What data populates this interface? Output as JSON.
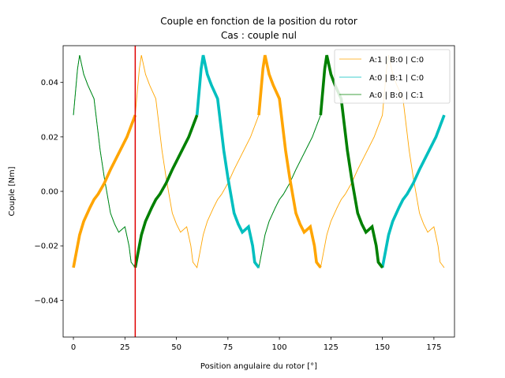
{
  "chart_data": {
    "type": "line",
    "title": "Couple en fonction de la position du rotor",
    "subtitle": "Cas : couple nul",
    "xlabel": "Position angulaire du rotor [°]",
    "ylabel": "Couple [Nm]",
    "xlim": [
      -5,
      185
    ],
    "ylim": [
      -0.0535,
      0.0535
    ],
    "xticks": [
      0,
      25,
      50,
      75,
      100,
      125,
      150,
      175
    ],
    "yticks": [
      -0.04,
      -0.02,
      0.0,
      0.02,
      0.04
    ],
    "xtick_labels": [
      "0",
      "25",
      "50",
      "75",
      "100",
      "125",
      "150",
      "175"
    ],
    "ytick_labels": [
      "−0.04",
      "−0.02",
      "0.00",
      "0.02",
      "0.04"
    ],
    "grid": false,
    "legend_position": "top-right",
    "period_deg": 60,
    "marker_line": {
      "x": 30,
      "color": "#e00000"
    },
    "base_waveform_A": {
      "x": [
        0,
        3,
        5,
        8,
        10,
        12,
        15,
        18,
        20,
        22,
        24,
        26,
        28,
        30,
        32,
        33,
        35,
        37,
        40,
        43,
        45,
        48,
        50,
        52,
        55,
        57,
        58,
        60
      ],
      "y": [
        -0.028,
        -0.016,
        -0.011,
        -0.006,
        -0.003,
        -0.001,
        0.003,
        0.008,
        0.011,
        0.014,
        0.017,
        0.02,
        0.024,
        0.028,
        0.045,
        0.05,
        0.043,
        0.039,
        0.034,
        0.015,
        0.005,
        -0.008,
        -0.012,
        -0.015,
        -0.013,
        -0.02,
        -0.026,
        -0.028
      ]
    },
    "series": [
      {
        "name": "A:1 | B:0 | C:0",
        "color": "#ffa500",
        "phase_shift_deg": 0,
        "bold_segments": [
          [
            0,
            30
          ],
          [
            90,
            120
          ]
        ]
      },
      {
        "name": "A:0 | B:1 | C:0",
        "color": "#00bfbf",
        "phase_shift_deg": -30,
        "bold_segments": [
          [
            60,
            90
          ],
          [
            150,
            180
          ]
        ]
      },
      {
        "name": "A:0 | B:0 | C:1",
        "color": "#008000",
        "phase_shift_deg": 30,
        "bold_segments": [
          [
            30,
            60
          ],
          [
            120,
            150
          ]
        ]
      }
    ],
    "x_range": [
      0,
      180
    ]
  }
}
